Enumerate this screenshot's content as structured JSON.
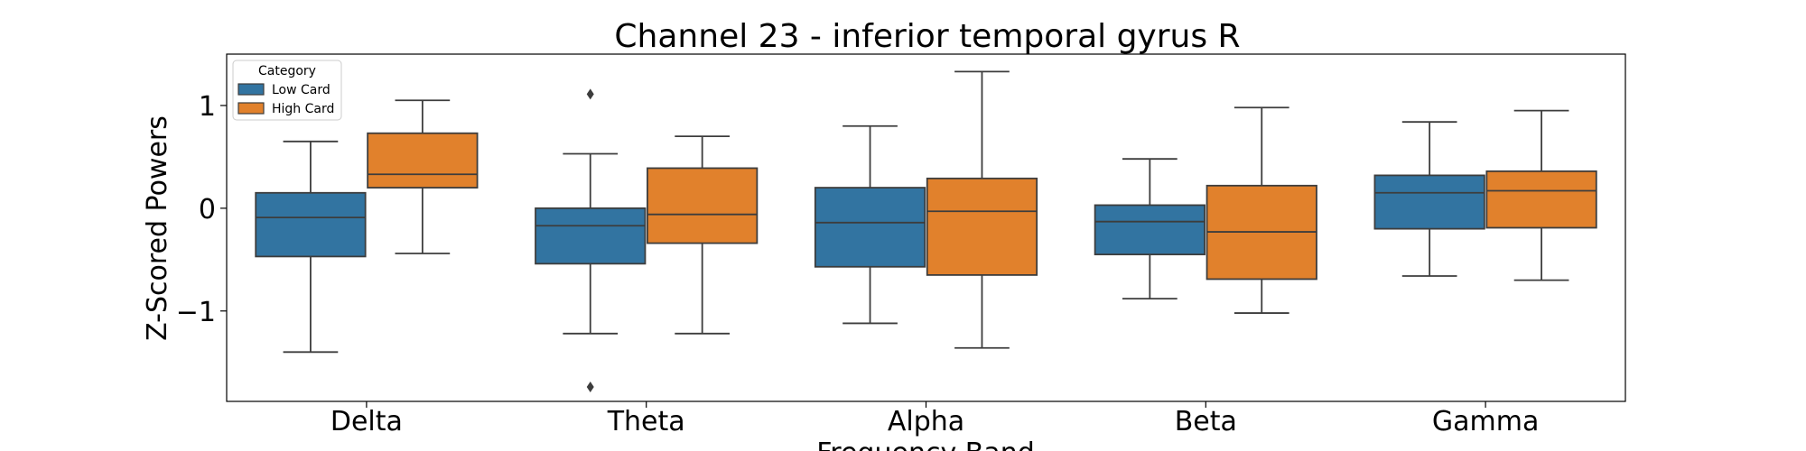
{
  "chart_data": {
    "type": "box",
    "title": "Channel 23 - inferior temporal gyrus R",
    "xlabel": "Frequency Band",
    "ylabel": "Z-Scored Powers",
    "categories": [
      "Delta",
      "Theta",
      "Alpha",
      "Beta",
      "Gamma"
    ],
    "ylim": [
      -1.88,
      1.5
    ],
    "yticks": [
      {
        "value": 1,
        "label": "1"
      },
      {
        "value": 0,
        "label": "0"
      },
      {
        "value": -1,
        "label": "−1"
      }
    ],
    "legend": {
      "title": "Category",
      "placement": "top-left"
    },
    "series": [
      {
        "name": "Low Card",
        "color": "#3274a1",
        "boxes": [
          {
            "whisker_low": -1.4,
            "q1": -0.47,
            "median": -0.09,
            "q3": 0.15,
            "whisker_high": 0.65,
            "outliers": []
          },
          {
            "whisker_low": -1.22,
            "q1": -0.54,
            "median": -0.17,
            "q3": 0.0,
            "whisker_high": 0.53,
            "outliers": [
              1.11,
              -1.74
            ]
          },
          {
            "whisker_low": -1.12,
            "q1": -0.57,
            "median": -0.14,
            "q3": 0.2,
            "whisker_high": 0.8,
            "outliers": []
          },
          {
            "whisker_low": -0.88,
            "q1": -0.45,
            "median": -0.13,
            "q3": 0.03,
            "whisker_high": 0.48,
            "outliers": []
          },
          {
            "whisker_low": -0.66,
            "q1": -0.2,
            "median": 0.15,
            "q3": 0.32,
            "whisker_high": 0.84,
            "outliers": []
          }
        ]
      },
      {
        "name": "High Card",
        "color": "#e1812c",
        "boxes": [
          {
            "whisker_low": -0.44,
            "q1": 0.2,
            "median": 0.33,
            "q3": 0.73,
            "whisker_high": 1.05,
            "outliers": []
          },
          {
            "whisker_low": -1.22,
            "q1": -0.34,
            "median": -0.06,
            "q3": 0.39,
            "whisker_high": 0.7,
            "outliers": []
          },
          {
            "whisker_low": -1.36,
            "q1": -0.65,
            "median": -0.03,
            "q3": 0.29,
            "whisker_high": 1.33,
            "outliers": []
          },
          {
            "whisker_low": -1.02,
            "q1": -0.69,
            "median": -0.23,
            "q3": 0.22,
            "whisker_high": 0.98,
            "outliers": []
          },
          {
            "whisker_low": -0.7,
            "q1": -0.19,
            "median": 0.17,
            "q3": 0.36,
            "whisker_high": 0.95,
            "outliers": []
          }
        ]
      }
    ]
  }
}
